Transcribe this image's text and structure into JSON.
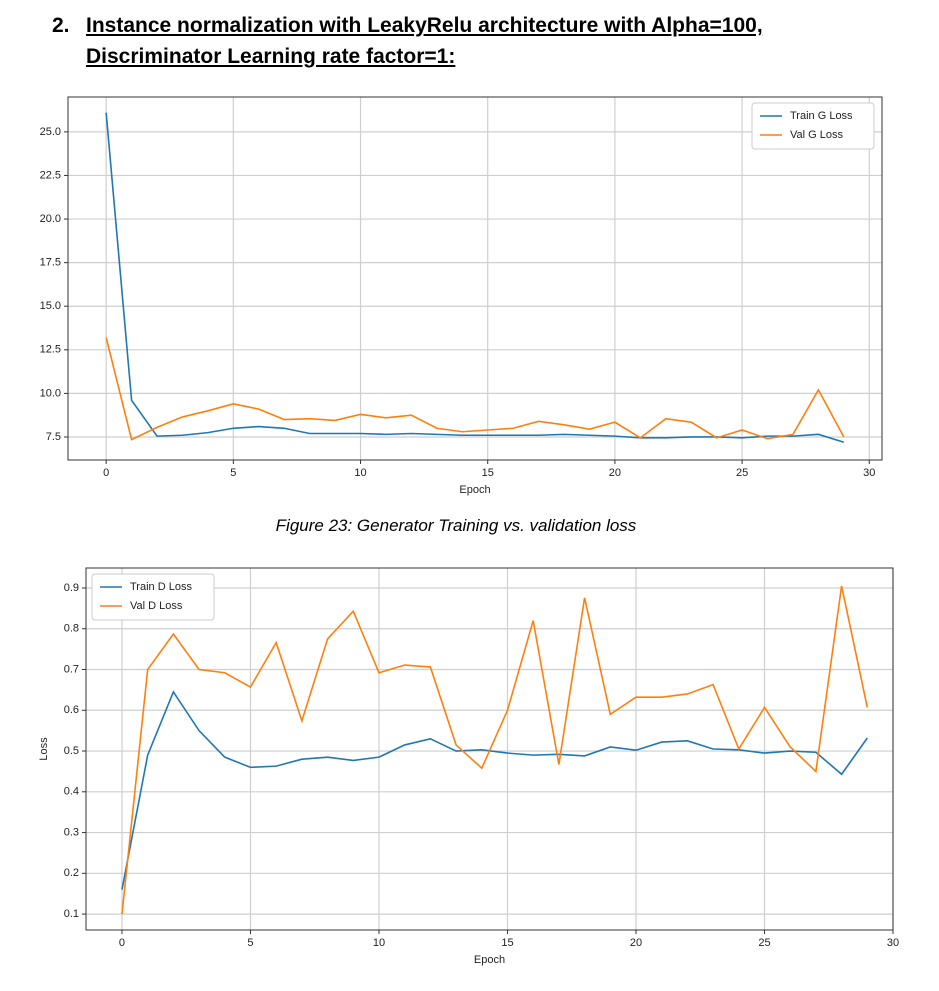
{
  "heading": {
    "number": "2.",
    "lines": [
      "Instance normalization with LeakyRelu architecture with Alpha=100,",
      "Discriminator Learning rate factor=1:"
    ]
  },
  "caption": "Figure 23:  Generator Training vs. validation loss",
  "chart_data": [
    {
      "type": "line",
      "xlabel": "Epoch",
      "x": [
        0,
        1,
        2,
        3,
        4,
        5,
        6,
        7,
        8,
        9,
        10,
        11,
        12,
        13,
        14,
        15,
        16,
        17,
        18,
        19,
        20,
        21,
        22,
        23,
        24,
        25,
        26,
        27,
        28,
        29
      ],
      "series": [
        {
          "name": "Train G Loss",
          "color": "#1f77b4",
          "values": [
            26.1,
            9.6,
            7.55,
            7.6,
            7.75,
            8.0,
            8.1,
            8.0,
            7.7,
            7.7,
            7.7,
            7.65,
            7.7,
            7.65,
            7.6,
            7.6,
            7.6,
            7.6,
            7.65,
            7.6,
            7.55,
            7.45,
            7.45,
            7.5,
            7.5,
            7.45,
            7.55,
            7.55,
            7.65,
            7.2
          ]
        },
        {
          "name": "Val G Loss",
          "color": "#ff7f0e",
          "values": [
            13.2,
            7.35,
            8.05,
            8.65,
            9.0,
            9.4,
            9.1,
            8.5,
            8.55,
            8.45,
            8.8,
            8.6,
            8.75,
            8.0,
            7.8,
            7.9,
            8.0,
            8.4,
            8.2,
            7.95,
            8.35,
            7.45,
            8.55,
            8.35,
            7.45,
            7.9,
            7.4,
            7.65,
            10.2,
            7.5
          ]
        }
      ],
      "xlim": [
        -1.5,
        30.5
      ],
      "xticks": [
        0,
        5,
        10,
        15,
        20,
        25,
        30
      ],
      "ylim": [
        6.18,
        27.0
      ],
      "yticks": [
        7.5,
        {
          "value": 10,
          "label": "10.0"
        },
        12.5,
        {
          "value": 15,
          "label": "15.0"
        },
        17.5,
        {
          "value": 20,
          "label": "20.0"
        },
        22.5,
        {
          "value": 25,
          "label": "25.0"
        }
      ],
      "grid": true,
      "legend": "upper right"
    },
    {
      "type": "line",
      "xlabel": "Epoch",
      "ylabel": "Loss",
      "x": [
        0,
        1,
        2,
        3,
        4,
        5,
        6,
        7,
        8,
        9,
        10,
        11,
        12,
        13,
        14,
        15,
        16,
        17,
        18,
        19,
        20,
        21,
        22,
        23,
        24,
        25,
        26,
        27,
        28,
        29
      ],
      "series": [
        {
          "name": "Train D Loss",
          "color": "#1f77b4",
          "values": [
            0.16,
            0.49,
            0.645,
            0.55,
            0.485,
            0.46,
            0.463,
            0.48,
            0.485,
            0.477,
            0.485,
            0.515,
            0.53,
            0.5,
            0.503,
            0.495,
            0.49,
            0.492,
            0.488,
            0.51,
            0.502,
            0.522,
            0.525,
            0.505,
            0.503,
            0.495,
            0.5,
            0.497,
            0.443,
            0.532
          ]
        },
        {
          "name": "Val D Loss",
          "color": "#ff7f0e",
          "values": [
            0.1,
            0.7,
            0.787,
            0.7,
            0.692,
            0.657,
            0.766,
            0.574,
            0.775,
            0.843,
            0.692,
            0.711,
            0.706,
            0.515,
            0.458,
            0.6,
            0.82,
            0.467,
            0.876,
            0.59,
            0.632,
            0.632,
            0.64,
            0.663,
            0.505,
            0.607,
            0.51,
            0.45,
            0.905,
            0.607
          ]
        }
      ],
      "xlim": [
        -1.4,
        30.0
      ],
      "xticks": [
        0,
        5,
        10,
        15,
        20,
        25,
        30
      ],
      "ylim": [
        0.061,
        0.949
      ],
      "yticks": [
        0.1,
        0.2,
        0.3,
        0.4,
        0.5,
        0.6,
        0.7,
        0.8,
        0.9
      ],
      "grid": true,
      "legend": "upper left"
    }
  ]
}
